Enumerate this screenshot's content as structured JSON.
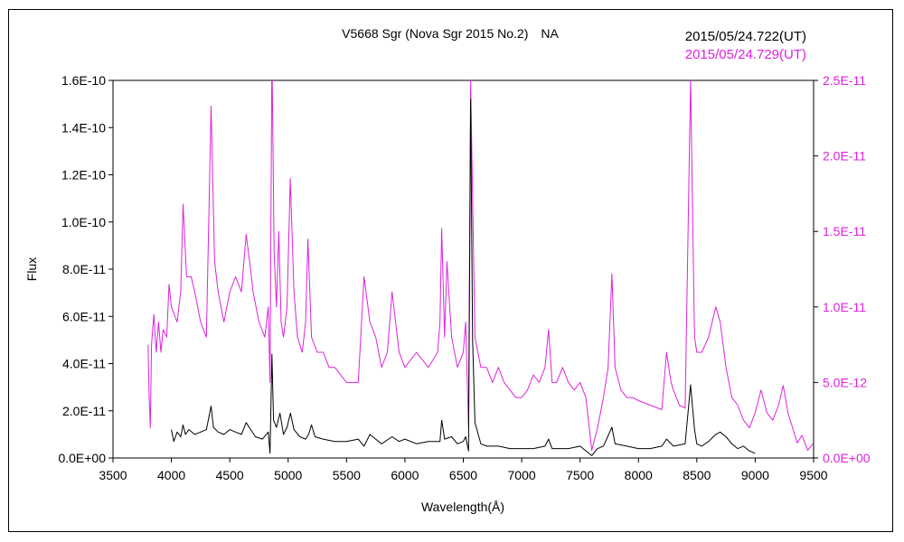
{
  "chart_data": {
    "type": "line",
    "title": "V5668 Sgr (Nova Sgr 2015 No.2)　NA",
    "xlabel": "Wavelength(Å)",
    "ylabel": "Flux",
    "xlim": [
      3500,
      9500
    ],
    "x_ticks": [
      "3500",
      "4000",
      "4500",
      "5000",
      "5500",
      "6000",
      "6500",
      "7000",
      "7500",
      "8000",
      "8500",
      "9000",
      "9500"
    ],
    "ylim_left": [
      0,
      1.6e-10
    ],
    "y_left_ticks": [
      "0.0E+00",
      "2.0E-11",
      "4.0E-11",
      "6.0E-11",
      "8.0E-11",
      "1.0E-10",
      "1.2E-10",
      "1.4E-10",
      "1.6E-10"
    ],
    "ylim_right": [
      0,
      2.5e-11
    ],
    "y_right_ticks": [
      "0.0E+00",
      "5.0E-12",
      "1.0E-11",
      "1.5E-11",
      "2.0E-11",
      "2.5E-11"
    ],
    "grid": false,
    "legend_position": "top-right",
    "colors": {
      "black_series": "#000000",
      "magenta_series": "#dd22dd"
    },
    "series": [
      {
        "name": "2015/05/24.722(UT)",
        "axis": "left",
        "color": "#000000",
        "points": [
          [
            4000,
            1.2e-11
          ],
          [
            4020,
            7e-12
          ],
          [
            4050,
            1.1e-11
          ],
          [
            4080,
            9e-12
          ],
          [
            4100,
            1.4e-11
          ],
          [
            4120,
            1e-11
          ],
          [
            4150,
            1.2e-11
          ],
          [
            4200,
            1e-11
          ],
          [
            4250,
            1.1e-11
          ],
          [
            4300,
            1.2e-11
          ],
          [
            4340,
            2.2e-11
          ],
          [
            4360,
            1.3e-11
          ],
          [
            4400,
            1.1e-11
          ],
          [
            4450,
            1e-11
          ],
          [
            4500,
            1.2e-11
          ],
          [
            4550,
            1.1e-11
          ],
          [
            4600,
            1e-11
          ],
          [
            4640,
            1.5e-11
          ],
          [
            4680,
            1.2e-11
          ],
          [
            4720,
            9e-12
          ],
          [
            4780,
            8e-12
          ],
          [
            4830,
            1.1e-11
          ],
          [
            4845,
            2e-12
          ],
          [
            4861,
            4.4e-11
          ],
          [
            4875,
            1.6e-11
          ],
          [
            4900,
            1.3e-11
          ],
          [
            4930,
            1.9e-11
          ],
          [
            4960,
            1e-11
          ],
          [
            4990,
            1.3e-11
          ],
          [
            5020,
            1.9e-11
          ],
          [
            5050,
            1.2e-11
          ],
          [
            5100,
            9e-12
          ],
          [
            5150,
            8e-12
          ],
          [
            5175,
            1e-11
          ],
          [
            5200,
            1.4e-11
          ],
          [
            5230,
            9e-12
          ],
          [
            5300,
            8e-12
          ],
          [
            5400,
            7e-12
          ],
          [
            5500,
            7e-12
          ],
          [
            5600,
            8e-12
          ],
          [
            5650,
            5e-12
          ],
          [
            5700,
            1e-11
          ],
          [
            5750,
            8e-12
          ],
          [
            5800,
            6e-12
          ],
          [
            5890,
            9e-12
          ],
          [
            5950,
            7e-12
          ],
          [
            6000,
            8e-12
          ],
          [
            6100,
            6e-12
          ],
          [
            6200,
            7e-12
          ],
          [
            6300,
            7e-12
          ],
          [
            6315,
            1.6e-11
          ],
          [
            6340,
            8e-12
          ],
          [
            6400,
            9e-12
          ],
          [
            6450,
            6e-12
          ],
          [
            6500,
            7e-12
          ],
          [
            6520,
            9e-12
          ],
          [
            6545,
            3e-12
          ],
          [
            6563,
            1.52e-10
          ],
          [
            6580,
            5e-11
          ],
          [
            6600,
            1.5e-11
          ],
          [
            6650,
            6e-12
          ],
          [
            6700,
            5e-12
          ],
          [
            6800,
            5e-12
          ],
          [
            6900,
            4e-12
          ],
          [
            7000,
            4e-12
          ],
          [
            7100,
            4e-12
          ],
          [
            7200,
            5e-12
          ],
          [
            7230,
            8e-12
          ],
          [
            7260,
            4e-12
          ],
          [
            7300,
            4e-12
          ],
          [
            7400,
            4e-12
          ],
          [
            7500,
            5e-12
          ],
          [
            7600,
            1e-12
          ],
          [
            7650,
            4e-12
          ],
          [
            7700,
            5e-12
          ],
          [
            7773,
            1.3e-11
          ],
          [
            7800,
            6e-12
          ],
          [
            7900,
            5e-12
          ],
          [
            8000,
            4e-12
          ],
          [
            8100,
            4e-12
          ],
          [
            8200,
            5e-12
          ],
          [
            8240,
            8e-12
          ],
          [
            8300,
            5e-12
          ],
          [
            8400,
            6e-12
          ],
          [
            8446,
            3.1e-11
          ],
          [
            8480,
            1.2e-11
          ],
          [
            8500,
            6e-12
          ],
          [
            8542,
            5e-12
          ],
          [
            8600,
            7e-12
          ],
          [
            8662,
            1e-11
          ],
          [
            8700,
            1.1e-11
          ],
          [
            8750,
            9e-12
          ],
          [
            8800,
            6e-12
          ],
          [
            8850,
            4e-12
          ],
          [
            8900,
            5e-12
          ],
          [
            8950,
            3e-12
          ],
          [
            9000,
            2e-12
          ]
        ]
      },
      {
        "name": "2015/05/24.729(UT)",
        "axis": "right",
        "color": "#dd22dd",
        "points": [
          [
            3800,
            7.5e-12
          ],
          [
            3810,
            4e-12
          ],
          [
            3820,
            2e-12
          ],
          [
            3830,
            7.5e-12
          ],
          [
            3850,
            9.5e-12
          ],
          [
            3870,
            7e-12
          ],
          [
            3890,
            9e-12
          ],
          [
            3910,
            7e-12
          ],
          [
            3930,
            8.5e-12
          ],
          [
            3960,
            8e-12
          ],
          [
            3980,
            1.15e-11
          ],
          [
            4000,
            1e-11
          ],
          [
            4050,
            9e-12
          ],
          [
            4080,
            1.1e-11
          ],
          [
            4100,
            1.68e-11
          ],
          [
            4130,
            1.2e-11
          ],
          [
            4170,
            1.2e-11
          ],
          [
            4200,
            1.1e-11
          ],
          [
            4250,
            9e-12
          ],
          [
            4300,
            8e-12
          ],
          [
            4340,
            2.33e-11
          ],
          [
            4370,
            1.3e-11
          ],
          [
            4400,
            1.1e-11
          ],
          [
            4450,
            9e-12
          ],
          [
            4500,
            1.1e-11
          ],
          [
            4550,
            1.2e-11
          ],
          [
            4600,
            1.1e-11
          ],
          [
            4640,
            1.48e-11
          ],
          [
            4670,
            1.3e-11
          ],
          [
            4700,
            1.1e-11
          ],
          [
            4750,
            9e-12
          ],
          [
            4800,
            8e-12
          ],
          [
            4830,
            1e-11
          ],
          [
            4845,
            5e-12
          ],
          [
            4861,
            2.7e-11
          ],
          [
            4880,
            1.35e-11
          ],
          [
            4900,
            1e-11
          ],
          [
            4920,
            1.5e-11
          ],
          [
            4940,
            9e-12
          ],
          [
            4960,
            8e-12
          ],
          [
            4990,
            1e-11
          ],
          [
            5018,
            1.85e-11
          ],
          [
            5050,
            1.1e-11
          ],
          [
            5080,
            8e-12
          ],
          [
            5120,
            7e-12
          ],
          [
            5150,
            9e-12
          ],
          [
            5169,
            1.45e-11
          ],
          [
            5200,
            8e-12
          ],
          [
            5250,
            7e-12
          ],
          [
            5300,
            7e-12
          ],
          [
            5350,
            6e-12
          ],
          [
            5400,
            6e-12
          ],
          [
            5500,
            5e-12
          ],
          [
            5600,
            5e-12
          ],
          [
            5650,
            1.2e-11
          ],
          [
            5700,
            9e-12
          ],
          [
            5750,
            8e-12
          ],
          [
            5800,
            6e-12
          ],
          [
            5850,
            7e-12
          ],
          [
            5890,
            1.1e-11
          ],
          [
            5950,
            7e-12
          ],
          [
            6000,
            6e-12
          ],
          [
            6100,
            7e-12
          ],
          [
            6200,
            6e-12
          ],
          [
            6280,
            7e-12
          ],
          [
            6300,
            9e-12
          ],
          [
            6315,
            1.52e-11
          ],
          [
            6340,
            8e-12
          ],
          [
            6360,
            1.3e-11
          ],
          [
            6400,
            8e-12
          ],
          [
            6450,
            6e-12
          ],
          [
            6500,
            7e-12
          ],
          [
            6520,
            9e-12
          ],
          [
            6545,
            2e-12
          ],
          [
            6563,
            2.5e-11
          ],
          [
            6600,
            8e-12
          ],
          [
            6650,
            6e-12
          ],
          [
            6700,
            6e-12
          ],
          [
            6750,
            5e-12
          ],
          [
            6800,
            6e-12
          ],
          [
            6850,
            5e-12
          ],
          [
            6900,
            4.5e-12
          ],
          [
            6950,
            4e-12
          ],
          [
            7000,
            4e-12
          ],
          [
            7050,
            4.5e-12
          ],
          [
            7100,
            5.5e-12
          ],
          [
            7150,
            5e-12
          ],
          [
            7200,
            6e-12
          ],
          [
            7230,
            8.5e-12
          ],
          [
            7260,
            5e-12
          ],
          [
            7300,
            5e-12
          ],
          [
            7350,
            6e-12
          ],
          [
            7400,
            5e-12
          ],
          [
            7450,
            4.5e-12
          ],
          [
            7500,
            5e-12
          ],
          [
            7550,
            4e-12
          ],
          [
            7600,
            5e-13
          ],
          [
            7650,
            2e-12
          ],
          [
            7700,
            4e-12
          ],
          [
            7740,
            6e-12
          ],
          [
            7773,
            1.22e-11
          ],
          [
            7800,
            6e-12
          ],
          [
            7850,
            4.5e-12
          ],
          [
            7900,
            4e-12
          ],
          [
            7950,
            4e-12
          ],
          [
            8000,
            3.8e-12
          ],
          [
            8100,
            3.5e-12
          ],
          [
            8200,
            3.2e-12
          ],
          [
            8240,
            7e-12
          ],
          [
            8280,
            5e-12
          ],
          [
            8300,
            4.5e-12
          ],
          [
            8350,
            3.5e-12
          ],
          [
            8400,
            3.3e-12
          ],
          [
            8446,
            2.5e-11
          ],
          [
            8480,
            8e-12
          ],
          [
            8500,
            7e-12
          ],
          [
            8542,
            7e-12
          ],
          [
            8600,
            8e-12
          ],
          [
            8662,
            1e-11
          ],
          [
            8700,
            9e-12
          ],
          [
            8750,
            6e-12
          ],
          [
            8800,
            4e-12
          ],
          [
            8850,
            3.5e-12
          ],
          [
            8900,
            2.5e-12
          ],
          [
            8950,
            2e-12
          ],
          [
            9000,
            3e-12
          ],
          [
            9050,
            4.5e-12
          ],
          [
            9100,
            3e-12
          ],
          [
            9150,
            2.5e-12
          ],
          [
            9200,
            3.5e-12
          ],
          [
            9240,
            4.8e-12
          ],
          [
            9280,
            3e-12
          ],
          [
            9320,
            2e-12
          ],
          [
            9360,
            1e-12
          ],
          [
            9400,
            1.5e-12
          ],
          [
            9450,
            5e-13
          ],
          [
            9500,
            1e-12
          ]
        ]
      }
    ]
  }
}
